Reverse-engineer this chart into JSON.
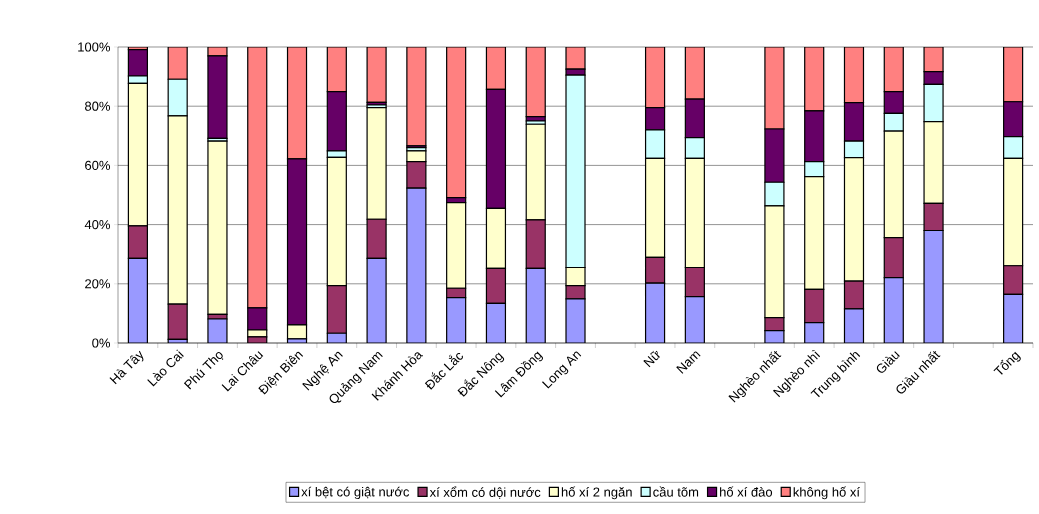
{
  "chart_data": {
    "type": "bar",
    "stacked": true,
    "categories": [
      "Hà Tây",
      "Lào Cai",
      "Phú Thọ",
      "Lai Châu",
      "Điện Biên",
      "Nghệ An",
      "Quảng Nam",
      "Khánh Hòa",
      "Đắc Lắc",
      "Đắc Nông",
      "Lâm Đồng",
      "Long An",
      null,
      "Nữ",
      "Nam",
      null,
      "Nghèo nhất",
      "Nghèo nhì",
      "Trung bình",
      "Giàu",
      "Giàu nhất",
      null,
      "Tổng"
    ],
    "series": [
      {
        "name": "xí bệt có giật nước",
        "color": "#9999ff",
        "values": [
          28.6,
          1.2,
          8.1,
          null,
          1.4,
          3.3,
          28.6,
          52.3,
          15.3,
          13.4,
          25.2,
          14.9,
          null,
          20.2,
          15.7,
          null,
          4.2,
          6.9,
          11.5,
          22.1,
          38.0,
          null,
          16.4
        ]
      },
      {
        "name": "xí xổm có dội nước",
        "color": "#993366",
        "values": [
          11.0,
          11.9,
          1.6,
          2.1,
          null,
          16.1,
          13.2,
          9.0,
          3.2,
          11.8,
          16.4,
          4.5,
          null,
          8.7,
          9.8,
          null,
          4.4,
          11.2,
          9.4,
          13.5,
          9.2,
          null,
          9.7
        ]
      },
      {
        "name": "hố xí 2 ngăn",
        "color": "#ffffcc",
        "values": [
          48.1,
          63.6,
          58.5,
          2.3,
          4.7,
          43.3,
          37.7,
          3.6,
          28.9,
          20.3,
          32.3,
          6.1,
          null,
          33.5,
          36.9,
          null,
          37.7,
          38.1,
          41.7,
          36.0,
          27.6,
          null,
          36.3
        ]
      },
      {
        "name": "cầu tõm",
        "color": "#ccffff",
        "values": [
          2.5,
          12.4,
          0.9,
          null,
          0,
          2.2,
          0.9,
          1.1,
          null,
          0,
          1.1,
          65.0,
          null,
          9.6,
          7.0,
          null,
          8.0,
          5.1,
          5.6,
          6.0,
          12.6,
          null,
          7.3
        ]
      },
      {
        "name": "hố xí đào",
        "color": "#660066",
        "values": [
          8.9,
          0,
          27.9,
          7.5,
          56.1,
          20.0,
          0.9,
          0.6,
          1.7,
          40.2,
          1.5,
          2.0,
          null,
          7.5,
          13.0,
          null,
          18.0,
          17.1,
          13.0,
          7.3,
          4.3,
          null,
          11.8
        ]
      },
      {
        "name": "không hố xí",
        "color": "#ff8080",
        "values": [
          0.9,
          10.9,
          3.0,
          88.1,
          37.8,
          15.1,
          18.7,
          33.4,
          50.9,
          14.3,
          23.5,
          7.5,
          null,
          20.5,
          17.6,
          null,
          27.7,
          21.6,
          18.8,
          15.1,
          8.3,
          null,
          18.5
        ]
      }
    ],
    "ylim": [
      0,
      100
    ],
    "yticks": [
      {
        "value": 0,
        "label": "0%"
      },
      {
        "value": 20,
        "label": "20%"
      },
      {
        "value": 40,
        "label": "40%"
      },
      {
        "value": 60,
        "label": "60%"
      },
      {
        "value": 80,
        "label": "80%"
      },
      {
        "value": 100,
        "label": "100%"
      }
    ],
    "grid": "y",
    "legend": "bottom"
  }
}
